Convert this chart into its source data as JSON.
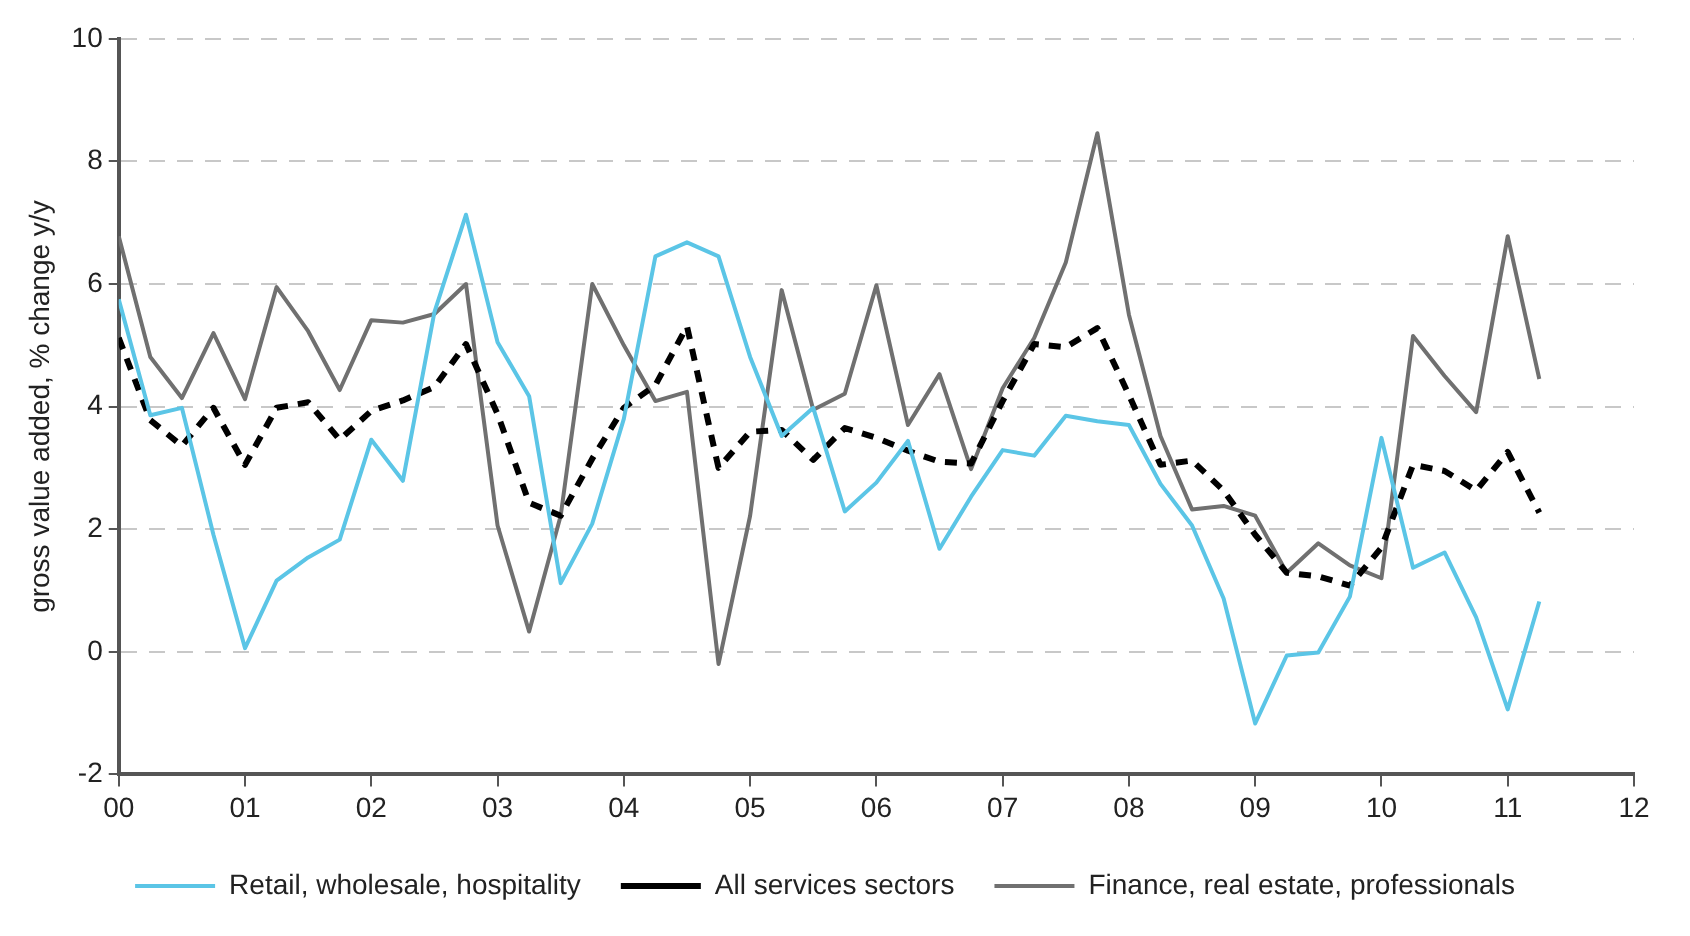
{
  "chart_data": {
    "type": "line",
    "ylabel": "gross value added, % change y/y",
    "x": [
      2000,
      2000.25,
      2000.5,
      2000.75,
      2001,
      2001.25,
      2001.5,
      2001.75,
      2002,
      2002.25,
      2002.5,
      2002.75,
      2003,
      2003.25,
      2003.5,
      2003.75,
      2004,
      2004.25,
      2004.5,
      2004.75,
      2005,
      2005.25,
      2005.5,
      2005.75,
      2006,
      2006.25,
      2006.5,
      2006.75,
      2007,
      2007.25,
      2007.5,
      2007.75,
      2008,
      2008.25,
      2008.5,
      2008.75,
      2009,
      2009.25,
      2009.5,
      2009.75,
      2010,
      2010.25,
      2010.5,
      2010.75,
      2011,
      2011.25
    ],
    "xlim": [
      2000,
      2012
    ],
    "xticks": [
      {
        "value": 2000,
        "label": "00"
      },
      {
        "value": 2001,
        "label": "01"
      },
      {
        "value": 2002,
        "label": "02"
      },
      {
        "value": 2003,
        "label": "03"
      },
      {
        "value": 2004,
        "label": "04"
      },
      {
        "value": 2005,
        "label": "05"
      },
      {
        "value": 2006,
        "label": "06"
      },
      {
        "value": 2007,
        "label": "07"
      },
      {
        "value": 2008,
        "label": "08"
      },
      {
        "value": 2009,
        "label": "09"
      },
      {
        "value": 2010,
        "label": "10"
      },
      {
        "value": 2011,
        "label": "11"
      },
      {
        "value": 2012,
        "label": "12"
      }
    ],
    "ylim": [
      -2,
      10
    ],
    "yticks": [
      -2,
      0,
      2,
      4,
      6,
      8,
      10
    ],
    "grid": "y",
    "legend": "bottom",
    "marker": "none",
    "series": [
      {
        "name": "Retail, wholesale, hospitality",
        "color": "#5bc5e6",
        "line_style": "solid",
        "values": [
          5.75,
          3.86,
          3.98,
          1.91,
          0.06,
          1.16,
          1.54,
          1.83,
          3.46,
          2.79,
          5.54,
          7.13,
          5.05,
          4.17,
          1.12,
          2.09,
          3.8,
          6.45,
          6.68,
          6.45,
          4.81,
          3.52,
          3.98,
          2.29,
          2.76,
          3.44,
          1.68,
          2.53,
          3.29,
          3.2,
          3.85,
          3.76,
          3.7,
          2.74,
          2.06,
          0.87,
          -1.17,
          -0.06,
          -0.01,
          0.9,
          3.49,
          1.37,
          1.62,
          0.56,
          -0.94,
          0.82
        ]
      },
      {
        "name": "All services sectors",
        "color": "#000000",
        "line_style": "dashed",
        "values": [
          5.12,
          3.78,
          3.36,
          3.98,
          3.05,
          3.98,
          4.07,
          3.46,
          3.93,
          4.1,
          4.32,
          5.02,
          3.88,
          2.43,
          2.22,
          3.15,
          3.98,
          4.35,
          5.31,
          3.0,
          3.59,
          3.62,
          3.13,
          3.65,
          3.49,
          3.28,
          3.1,
          3.07,
          4.09,
          5.02,
          4.97,
          5.28,
          4.19,
          3.05,
          3.12,
          2.63,
          1.91,
          1.29,
          1.23,
          1.08,
          1.7,
          3.05,
          2.95,
          2.63,
          3.26,
          2.27
        ]
      },
      {
        "name": "Finance, real estate, professionals",
        "color": "#707070",
        "line_style": "solid",
        "values": [
          6.78,
          4.81,
          4.14,
          5.2,
          4.12,
          5.95,
          5.23,
          4.27,
          5.41,
          5.37,
          5.51,
          6.0,
          2.06,
          0.33,
          2.22,
          6.0,
          5.0,
          4.09,
          4.24,
          -0.2,
          2.22,
          5.9,
          3.95,
          4.21,
          5.98,
          3.7,
          4.53,
          2.98,
          4.3,
          5.12,
          6.35,
          8.46,
          5.5,
          3.52,
          2.32,
          2.38,
          2.22,
          1.29,
          1.77,
          1.41,
          1.2,
          5.15,
          4.5,
          3.91,
          6.78,
          4.45
        ]
      }
    ]
  }
}
